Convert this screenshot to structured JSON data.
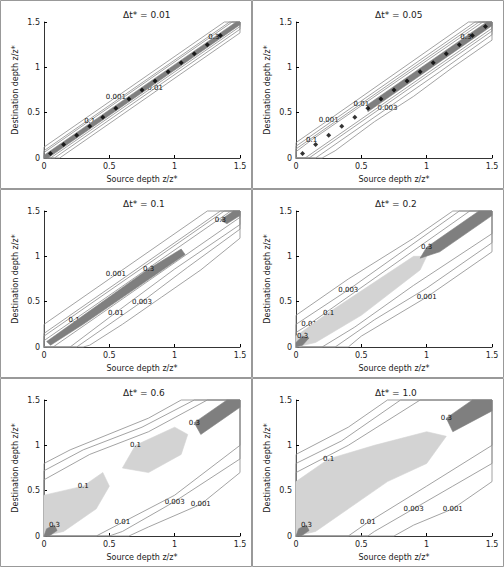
{
  "chart_data": [
    {
      "type": "contour",
      "title": "Δt* = 0.01",
      "x_label": "Source depth z/z*",
      "y_label": "Destination depth z/z*",
      "xlim": [
        0,
        1.5
      ],
      "ylim": [
        0,
        1.5
      ],
      "xticks": [
        0,
        0.5,
        1,
        1.5
      ],
      "yticks": [
        0,
        0.5,
        1,
        1.5
      ],
      "grid": false,
      "series": [
        {
          "type": "line",
          "level": 0.001,
          "color": "#8c8c8c",
          "x": [
            0.55,
            1.38,
            1.5,
            1.5,
            0.12,
            0,
            0
          ],
          "y": [
            0.67,
            1.5,
            1.5,
            1.38,
            0,
            0,
            0.12
          ]
        },
        {
          "type": "line",
          "level": 0.01,
          "color": "#8c8c8c",
          "x": [
            0.85,
            0.08,
            0,
            0,
            1.42,
            1.5,
            1.5
          ],
          "y": [
            0.77,
            0,
            0,
            0.08,
            1.5,
            1.5,
            1.42
          ]
        },
        {
          "type": "line",
          "level": 0.1,
          "color": "#8c8c8c",
          "x": [
            0.35,
            1.44,
            1.5,
            1.5,
            0.05,
            0,
            0
          ],
          "y": [
            0.41,
            1.5,
            1.5,
            1.45,
            0,
            0,
            0.06
          ]
        },
        {
          "type": "area",
          "level": 0.3,
          "color": "#7f7f7f",
          "x": [
            1.3,
            1.47,
            1.5,
            1.5,
            0.03,
            0,
            0
          ],
          "y": [
            1.33,
            1.5,
            1.5,
            1.47,
            0,
            0,
            0.03
          ]
        },
        {
          "type": "scatter",
          "marker": "diamond",
          "color": "#000000",
          "x": [
            0.05,
            0.15,
            0.25,
            0.35,
            0.45,
            0.55,
            0.65,
            0.75,
            0.85,
            0.95,
            1.05,
            1.15,
            1.25,
            1.35
          ],
          "y": [
            0.05,
            0.15,
            0.25,
            0.35,
            0.45,
            0.55,
            0.65,
            0.75,
            0.85,
            0.95,
            1.05,
            1.15,
            1.25,
            1.35
          ]
        }
      ]
    },
    {
      "type": "contour",
      "title": "Δt* = 0.05",
      "x_label": "Source depth z/z*",
      "y_label": "Destination depth z/z*",
      "xlim": [
        0,
        1.5
      ],
      "ylim": [
        0,
        1.5
      ],
      "xticks": [
        0,
        0.5,
        1,
        1.5
      ],
      "yticks": [
        0,
        0.5,
        1,
        1.5
      ],
      "grid": false,
      "series": [
        {
          "type": "line",
          "level": 0.001,
          "color": "#8c8c8c",
          "x": [
            0.25,
            1.32,
            1.5,
            1.5,
            1.2,
            0.9,
            0.6,
            0.3,
            0.2,
            0,
            0
          ],
          "y": [
            0.42,
            1.5,
            1.5,
            1.3,
            1.0,
            0.68,
            0.4,
            0.08,
            0,
            0,
            0.17
          ]
        },
        {
          "type": "line",
          "level": 0.003,
          "color": "#8c8c8c",
          "x": [
            0.7,
            0.15,
            0,
            0,
            1.37,
            1.5,
            1.5,
            1.1
          ],
          "y": [
            0.55,
            0,
            0,
            0.13,
            1.5,
            1.5,
            1.36,
            0.95
          ]
        },
        {
          "type": "line",
          "level": 0.01,
          "color": "#8c8c8c",
          "x": [
            0.5,
            1.4,
            1.5,
            1.5,
            0.1,
            0,
            0
          ],
          "y": [
            0.6,
            1.5,
            1.5,
            1.4,
            0,
            0,
            0.1
          ]
        },
        {
          "type": "line",
          "level": 0.1,
          "color": "#8c8c8c",
          "x": [
            0.12,
            1.43,
            1.5,
            1.5,
            0.07,
            0,
            0
          ],
          "y": [
            0.2,
            1.5,
            1.5,
            1.43,
            0,
            0,
            0.07
          ]
        },
        {
          "type": "area",
          "level": 0.3,
          "color": "#7f7f7f",
          "x": [
            1.3,
            1.46,
            1.5,
            1.5,
            0.55,
            0.55
          ],
          "y": [
            1.34,
            1.5,
            1.5,
            1.46,
            0.51,
            0.59
          ]
        },
        {
          "type": "scatter",
          "marker": "diamond",
          "color": "#000000",
          "x": [
            0.05,
            0.15,
            0.25,
            0.35,
            0.45,
            0.55,
            0.65,
            0.75,
            0.85,
            0.95,
            1.05,
            1.15,
            1.25,
            1.35,
            1.45
          ],
          "y": [
            0.05,
            0.15,
            0.25,
            0.35,
            0.45,
            0.55,
            0.65,
            0.75,
            0.85,
            0.95,
            1.05,
            1.15,
            1.25,
            1.35,
            1.45
          ]
        }
      ]
    },
    {
      "type": "contour",
      "title": "Δt* = 0.1",
      "x_label": "Source depth z/z*",
      "y_label": "Destination depth z/z*",
      "xlim": [
        0,
        1.5
      ],
      "ylim": [
        0,
        1.5
      ],
      "xticks": [
        0,
        0.5,
        1,
        1.5
      ],
      "yticks": [
        0,
        0.5,
        1,
        1.5
      ],
      "grid": false,
      "series": [
        {
          "type": "line",
          "level": 0.001,
          "color": "#8c8c8c",
          "x": [
            0.55,
            1.25,
            1.5,
            1.5,
            1.2,
            0.9,
            0.6,
            0.35,
            0.3,
            0,
            0
          ],
          "y": [
            0.8,
            1.5,
            1.5,
            1.2,
            0.85,
            0.55,
            0.25,
            0.02,
            0,
            0,
            0.25
          ]
        },
        {
          "type": "line",
          "level": 0.003,
          "color": "#8c8c8c",
          "x": [
            0.75,
            0.45,
            0.25,
            0,
            0,
            1.2,
            1.35,
            1.5,
            1.5,
            1.1
          ],
          "y": [
            0.5,
            0.2,
            0,
            0,
            0.15,
            1.35,
            1.5,
            1.5,
            1.3,
            0.88
          ]
        },
        {
          "type": "line",
          "level": 0.01,
          "color": "#8c8c8c",
          "x": [
            0.55,
            0.2,
            0,
            0,
            1.38,
            1.5,
            1.5,
            1.0
          ],
          "y": [
            0.38,
            0,
            0,
            0.12,
            1.5,
            1.5,
            1.35,
            0.86
          ]
        },
        {
          "type": "line",
          "level": 0.1,
          "color": "#8c8c8c",
          "x": [
            0.23,
            1.43,
            1.5,
            1.5,
            0.07,
            0,
            0
          ],
          "y": [
            0.3,
            1.5,
            1.5,
            1.43,
            0,
            0,
            0.07
          ]
        },
        {
          "type": "area",
          "level": 0.3,
          "color": "#7f7f7f",
          "x": [
            0.8,
            1.05,
            1.08,
            0.3,
            0.05,
            0.02
          ],
          "y": [
            0.86,
            1.08,
            1.02,
            0.25,
            0.02,
            0.06
          ]
        },
        {
          "type": "area",
          "level": 0.3,
          "color": "#7f7f7f",
          "x": [
            1.35,
            1.45,
            1.5,
            1.5,
            1.4
          ],
          "y": [
            1.4,
            1.5,
            1.5,
            1.45,
            1.36
          ]
        }
      ]
    },
    {
      "type": "contour",
      "title": "Δt* = 0.2",
      "x_label": "Source depth z/z*",
      "y_label": "Destination depth z/z*",
      "xlim": [
        0,
        1.5
      ],
      "ylim": [
        0,
        1.5
      ],
      "xticks": [
        0,
        0.5,
        1,
        1.5
      ],
      "yticks": [
        0,
        0.5,
        1,
        1.5
      ],
      "grid": false,
      "series": [
        {
          "type": "line",
          "level": 0.001,
          "color": "#8c8c8c",
          "x": [
            1.0,
            0.5,
            0.4,
            0,
            0,
            0.4,
            0.9,
            1.2,
            1.5,
            1.5
          ],
          "y": [
            0.55,
            0.12,
            0,
            0,
            0.35,
            0.75,
            1.2,
            1.5,
            1.5,
            1.05
          ]
        },
        {
          "type": "line",
          "level": 0.003,
          "color": "#8c8c8c",
          "x": [
            0.4,
            1.25,
            1.5,
            1.5,
            1.0,
            0.6,
            0.3,
            0,
            0
          ],
          "y": [
            0.63,
            1.5,
            1.5,
            1.15,
            0.65,
            0.3,
            0,
            0,
            0.25
          ]
        },
        {
          "type": "line",
          "level": 0.01,
          "color": "#8c8c8c",
          "x": [
            0.1,
            1.33,
            1.5,
            1.5,
            0.9,
            0.45,
            0.2,
            0,
            0
          ],
          "y": [
            0.25,
            1.5,
            1.5,
            1.25,
            0.68,
            0.22,
            0,
            0,
            0.16
          ]
        },
        {
          "type": "area",
          "level": 0.1,
          "color": "#d3d3d3",
          "x": [
            0.25,
            0.9,
            1.0,
            0.95,
            0.5,
            0.15,
            0,
            0
          ],
          "y": [
            0.38,
            1.0,
            1.0,
            0.85,
            0.35,
            0.05,
            0,
            0.12
          ]
        },
        {
          "type": "area",
          "level": 0.3,
          "color": "#7f7f7f",
          "x": [
            1.0,
            1.4,
            1.5,
            1.5,
            1.1,
            0.95
          ],
          "y": [
            1.1,
            1.5,
            1.5,
            1.45,
            1.05,
            0.98
          ]
        },
        {
          "type": "area",
          "level": 0.3,
          "color": "#7f7f7f",
          "x": [
            0.05,
            0.1,
            0.05,
            0,
            0
          ],
          "y": [
            0.12,
            0.1,
            0.02,
            0,
            0.05
          ]
        }
      ]
    },
    {
      "type": "contour",
      "title": "Δt* = 0.6",
      "x_label": "Source depth z/z*",
      "y_label": "Destination depth z/z*",
      "xlim": [
        0,
        1.5
      ],
      "ylim": [
        0,
        1.5
      ],
      "xticks": [
        0,
        0.5,
        1,
        1.5
      ],
      "yticks": [
        0,
        0.5,
        1,
        1.5
      ],
      "grid": false,
      "series": [
        {
          "type": "line",
          "level": 0.001,
          "color": "#8c8c8c",
          "x": [
            1.2,
            0.8,
            0.65,
            0,
            0,
            0.2,
            0.8,
            1.05,
            1.5,
            1.5
          ],
          "y": [
            0.35,
            0.1,
            0,
            0,
            0.8,
            0.95,
            1.3,
            1.5,
            1.5,
            0.7
          ]
        },
        {
          "type": "line",
          "level": 0.003,
          "color": "#8c8c8c",
          "x": [
            1.0,
            0.6,
            0.5,
            0,
            0,
            0.3,
            0.75,
            1.15,
            1.5,
            1.5
          ],
          "y": [
            0.38,
            0.05,
            0,
            0,
            0.72,
            0.95,
            1.2,
            1.5,
            1.5,
            0.85
          ]
        },
        {
          "type": "line",
          "level": 0.01,
          "color": "#8c8c8c",
          "x": [
            0.6,
            0.4,
            0,
            0,
            0.35,
            0.8,
            1.25,
            1.5,
            1.5,
            1.0
          ],
          "y": [
            0.15,
            0,
            0,
            0.62,
            0.9,
            1.15,
            1.5,
            1.5,
            1.0,
            0.45
          ]
        },
        {
          "type": "area",
          "level": 0.1,
          "color": "#d3d3d3",
          "x": [
            0.3,
            0.45,
            0.5,
            0.4,
            0.15,
            0,
            0
          ],
          "y": [
            0.55,
            0.7,
            0.55,
            0.3,
            0.05,
            0,
            0.45
          ]
        },
        {
          "type": "area",
          "level": 0.1,
          "color": "#d3d3d3",
          "x": [
            0.7,
            1.0,
            1.1,
            1.05,
            0.8,
            0.6
          ],
          "y": [
            1.0,
            1.2,
            1.12,
            0.9,
            0.7,
            0.75
          ]
        },
        {
          "type": "area",
          "level": 0.3,
          "color": "#7f7f7f",
          "x": [
            1.15,
            1.4,
            1.5,
            1.5,
            1.2
          ],
          "y": [
            1.25,
            1.5,
            1.5,
            1.42,
            1.12
          ]
        },
        {
          "type": "area",
          "level": 0.3,
          "color": "#7f7f7f",
          "x": [
            0.08,
            0.1,
            0.04,
            0,
            0.02
          ],
          "y": [
            0.12,
            0.06,
            0,
            0,
            0.08
          ]
        }
      ]
    },
    {
      "type": "contour",
      "title": "Δt* = 1.0",
      "x_label": "Source depth z/z*",
      "y_label": "Destination depth z/z*",
      "xlim": [
        0,
        1.5
      ],
      "ylim": [
        0,
        1.5
      ],
      "xticks": [
        0,
        0.5,
        1,
        1.5
      ],
      "yticks": [
        0,
        0.5,
        1,
        1.5
      ],
      "grid": false,
      "series": [
        {
          "type": "line",
          "level": 0.001,
          "color": "#8c8c8c",
          "x": [
            1.2,
            0.9,
            0.75,
            0,
            0,
            0.4,
            0.7,
            1.5,
            1.5
          ],
          "y": [
            0.3,
            0.12,
            0,
            0,
            0.9,
            1.2,
            1.5,
            1.5,
            0.6
          ]
        },
        {
          "type": "line",
          "level": 0.003,
          "color": "#8c8c8c",
          "x": [
            0.9,
            0.6,
            0.55,
            0,
            0,
            0.35,
            0.8,
            1.5,
            1.5,
            1.2
          ],
          "y": [
            0.3,
            0.05,
            0,
            0,
            0.8,
            1.05,
            1.5,
            1.5,
            0.8,
            0.55
          ]
        },
        {
          "type": "line",
          "level": 0.01,
          "color": "#8c8c8c",
          "x": [
            0.55,
            0.4,
            0,
            0,
            0.4,
            0.95,
            1.5,
            1.5,
            1.0
          ],
          "y": [
            0.15,
            0,
            0,
            0.7,
            1.0,
            1.5,
            1.5,
            1.0,
            0.55
          ]
        },
        {
          "type": "area",
          "level": 0.1,
          "color": "#d3d3d3",
          "x": [
            0.25,
            0.6,
            1.0,
            1.15,
            1.0,
            0.7,
            0.4,
            0.15,
            0,
            0
          ],
          "y": [
            0.85,
            1.0,
            1.15,
            1.1,
            0.8,
            0.6,
            0.3,
            0.05,
            0,
            0.6
          ]
        },
        {
          "type": "area",
          "level": 0.3,
          "color": "#7f7f7f",
          "x": [
            1.15,
            1.35,
            1.5,
            1.5,
            1.2
          ],
          "y": [
            1.3,
            1.5,
            1.5,
            1.38,
            1.15
          ]
        },
        {
          "type": "area",
          "level": 0.3,
          "color": "#7f7f7f",
          "x": [
            0.08,
            0.1,
            0.04,
            0,
            0.02
          ],
          "y": [
            0.12,
            0.06,
            0,
            0,
            0.08
          ]
        }
      ]
    }
  ]
}
